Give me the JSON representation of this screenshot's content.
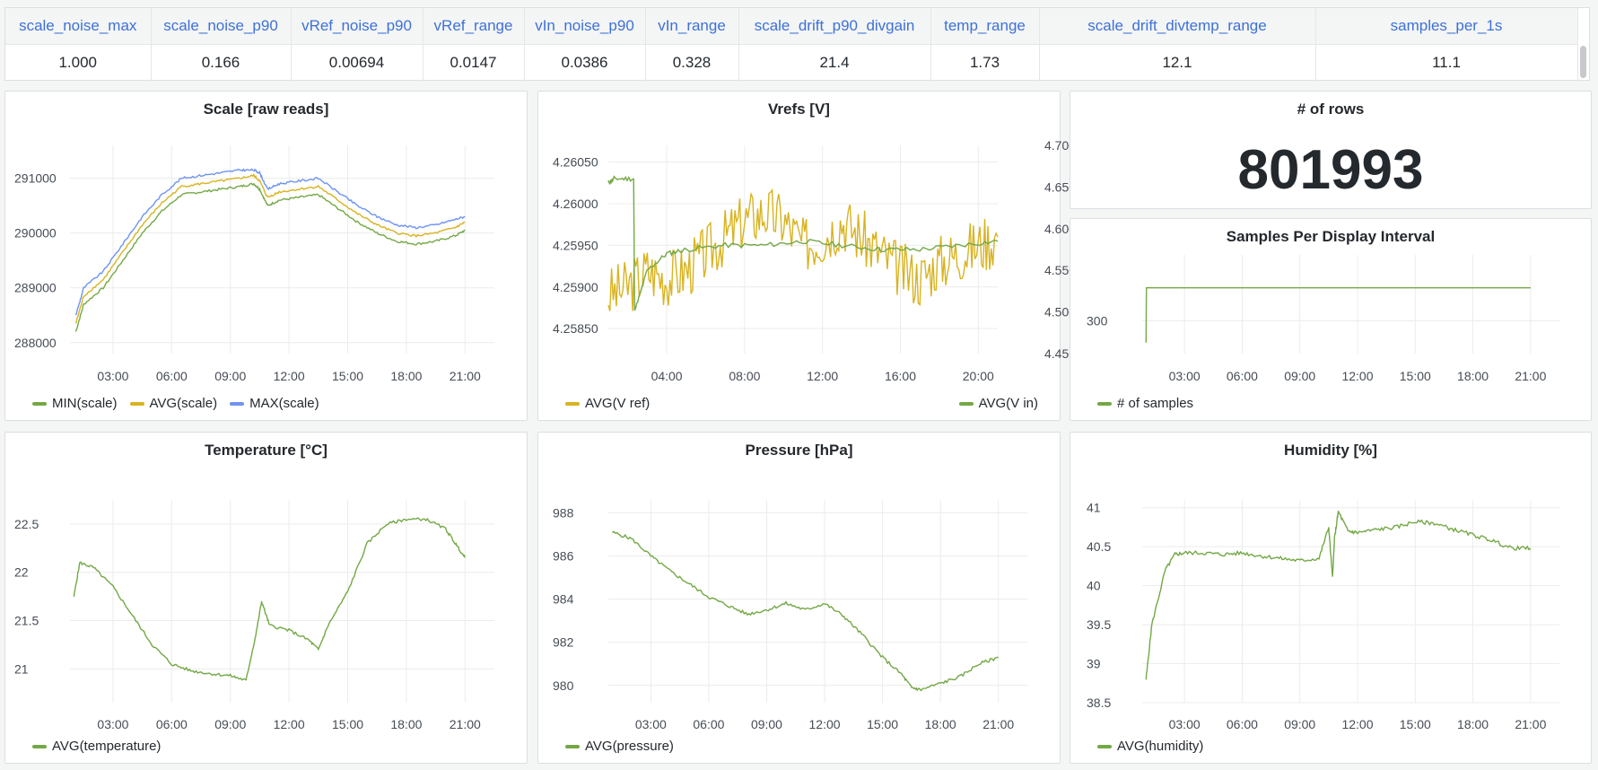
{
  "stats_table": {
    "columns": [
      "scale_noise_max",
      "scale_noise_p90",
      "vRef_noise_p90",
      "vRef_range",
      "vIn_noise_p90",
      "vIn_range",
      "scale_drift_p90_divgain",
      "temp_range",
      "scale_drift_divtemp_range",
      "samples_per_1s"
    ],
    "values": [
      "1.000",
      "0.166",
      "0.00694",
      "0.0147",
      "0.0386",
      "0.328",
      "21.4",
      "1.73",
      "12.1",
      "11.1"
    ]
  },
  "panels": {
    "scale": {
      "title": "Scale [raw reads]",
      "legend": [
        "MIN(scale)",
        "AVG(scale)",
        "MAX(scale)"
      ]
    },
    "vrefs": {
      "title": "Vrefs [V]",
      "legend_left": "AVG(V ref)",
      "legend_right": "AVG(V in)"
    },
    "rows": {
      "title": "# of rows",
      "value": "801993"
    },
    "samples": {
      "title": "Samples Per Display Interval",
      "legend": [
        "# of samples"
      ]
    },
    "temperature": {
      "title": "Temperature [°C]",
      "legend": [
        "AVG(temperature)"
      ]
    },
    "pressure": {
      "title": "Pressure [hPa]",
      "legend": [
        "AVG(pressure)"
      ]
    },
    "humidity": {
      "title": "Humidity [%]",
      "legend": [
        "AVG(humidity)"
      ]
    }
  },
  "colors": {
    "green": "#73a845",
    "yellow": "#d8b320",
    "blue": "#6e94ef",
    "grid": "#ececec"
  },
  "chart_data": [
    {
      "id": "scale",
      "type": "line",
      "title": "Scale [raw reads]",
      "x_ticks": [
        "03:00",
        "06:00",
        "09:00",
        "12:00",
        "15:00",
        "18:00",
        "21:00"
      ],
      "x": [
        1.1,
        1.5,
        2.5,
        3.5,
        4.5,
        5.5,
        6.5,
        7.5,
        8.5,
        9.5,
        10.2,
        10.5,
        10.9,
        11.5,
        12.5,
        13.5,
        14.5,
        15.5,
        16.5,
        17.5,
        18.5,
        19.5,
        20.5,
        21.0
      ],
      "xlim": [
        0.8,
        22.5
      ],
      "ylim": [
        287800,
        291600
      ],
      "y_ticks": [
        288000,
        289000,
        290000,
        291000
      ],
      "series": [
        {
          "name": "MIN(scale)",
          "color": "#73a845",
          "values": [
            288200,
            288700,
            289000,
            289500,
            290000,
            290400,
            290700,
            290750,
            290800,
            290850,
            290900,
            290800,
            290500,
            290600,
            290650,
            290700,
            290450,
            290200,
            290000,
            289850,
            289800,
            289850,
            289950,
            290050
          ]
        },
        {
          "name": "AVG(scale)",
          "color": "#d8b320",
          "values": [
            288350,
            288850,
            289150,
            289650,
            290150,
            290550,
            290850,
            290900,
            290950,
            291000,
            291050,
            290950,
            290650,
            290750,
            290800,
            290850,
            290600,
            290350,
            290150,
            290000,
            289950,
            290000,
            290100,
            290200
          ]
        },
        {
          "name": "MAX(scale)",
          "color": "#6e94ef",
          "values": [
            288500,
            289000,
            289300,
            289800,
            290300,
            290700,
            291000,
            291050,
            291100,
            291150,
            291150,
            291100,
            290800,
            290900,
            290950,
            291000,
            290750,
            290500,
            290300,
            290150,
            290100,
            290150,
            290250,
            290300
          ]
        }
      ]
    },
    {
      "id": "vrefs",
      "type": "line",
      "title": "Vrefs [V]",
      "x_ticks": [
        "04:00",
        "08:00",
        "12:00",
        "16:00",
        "20:00"
      ],
      "xlim": [
        1.0,
        21.0
      ],
      "y_left_ticks": [
        "4.25850",
        "4.25900",
        "4.25950",
        "4.26000",
        "4.26050"
      ],
      "y_left_lim": [
        4.2582,
        4.2607
      ],
      "y_right_ticks": [
        "4.45000",
        "4.50000",
        "4.55000",
        "4.60000",
        "4.65000",
        "4.70000"
      ],
      "y_right_lim": [
        4.45,
        4.7
      ],
      "series": [
        {
          "name": "AVG(V ref)",
          "color": "#d8b320",
          "axis": "left",
          "x": [
            1.0,
            2.0,
            3.0,
            4.0,
            5.0,
            6.0,
            7.0,
            8.0,
            9.0,
            10.0,
            11.0,
            12.0,
            13.0,
            14.0,
            15.0,
            16.0,
            17.0,
            18.0,
            19.0,
            20.0,
            21.0
          ],
          "values": [
            4.2589,
            4.259,
            4.2592,
            4.2591,
            4.2592,
            4.2594,
            4.2596,
            4.2598,
            4.2599,
            4.2598,
            4.2595,
            4.2596,
            4.2598,
            4.2596,
            4.2594,
            4.2592,
            4.2591,
            4.2593,
            4.2594,
            4.2595,
            4.2596
          ]
        },
        {
          "name": "AVG(V in)",
          "color": "#73a845",
          "axis": "right",
          "x": [
            1.0,
            1.3,
            2.3,
            2.35,
            3.0,
            4.0,
            5.0,
            7.0,
            9.0,
            11.0,
            13.0,
            15.0,
            17.0,
            19.0,
            21.0
          ],
          "values": [
            4.655,
            4.66,
            4.66,
            4.5,
            4.55,
            4.57,
            4.575,
            4.58,
            4.58,
            4.585,
            4.58,
            4.575,
            4.575,
            4.58,
            4.585
          ]
        }
      ]
    },
    {
      "id": "samples",
      "type": "line",
      "title": "Samples Per Display Interval",
      "x_ticks": [
        "03:00",
        "06:00",
        "09:00",
        "12:00",
        "15:00",
        "18:00",
        "21:00"
      ],
      "xlim": [
        0.8,
        22.5
      ],
      "y_ticks": [
        300
      ],
      "ylim": [
        270,
        360
      ],
      "series": [
        {
          "name": "# of samples",
          "color": "#73a845",
          "x": [
            1.0,
            1.02,
            1.05,
            21.0
          ],
          "values": [
            280,
            330,
            330,
            330
          ]
        }
      ]
    },
    {
      "id": "temperature",
      "type": "line",
      "title": "Temperature [°C]",
      "x_ticks": [
        "03:00",
        "06:00",
        "09:00",
        "12:00",
        "15:00",
        "18:00",
        "21:00"
      ],
      "xlim": [
        0.8,
        22.5
      ],
      "y_ticks": [
        21,
        21.5,
        22,
        22.5
      ],
      "ylim": [
        20.65,
        22.75
      ],
      "series": [
        {
          "name": "AVG(temperature)",
          "color": "#73a845",
          "x": [
            1.0,
            1.3,
            2.0,
            3.0,
            4.0,
            5.0,
            6.0,
            7.0,
            8.0,
            9.0,
            9.8,
            10.3,
            10.6,
            11.0,
            12.0,
            13.0,
            13.5,
            14.0,
            15.0,
            16.0,
            17.0,
            18.0,
            19.0,
            20.0,
            20.5,
            21.0
          ],
          "values": [
            21.75,
            22.1,
            22.05,
            21.85,
            21.55,
            21.25,
            21.05,
            20.98,
            20.95,
            20.93,
            20.88,
            21.35,
            21.7,
            21.45,
            21.4,
            21.3,
            21.2,
            21.45,
            21.8,
            22.3,
            22.5,
            22.55,
            22.55,
            22.45,
            22.3,
            22.15
          ]
        }
      ]
    },
    {
      "id": "pressure",
      "type": "line",
      "title": "Pressure [hPa]",
      "x_ticks": [
        "03:00",
        "06:00",
        "09:00",
        "12:00",
        "15:00",
        "18:00",
        "21:00"
      ],
      "xlim": [
        0.8,
        22.5
      ],
      "y_ticks": [
        980,
        982,
        984,
        986,
        988
      ],
      "ylim": [
        979.2,
        988.6
      ],
      "series": [
        {
          "name": "AVG(pressure)",
          "color": "#73a845",
          "x": [
            1.0,
            2.0,
            3.0,
            4.0,
            5.0,
            6.0,
            7.0,
            8.0,
            9.0,
            10.0,
            11.0,
            12.0,
            13.0,
            14.0,
            15.0,
            16.0,
            16.5,
            17.0,
            18.0,
            19.0,
            20.0,
            21.0
          ],
          "values": [
            987.1,
            986.8,
            986.0,
            985.3,
            984.7,
            984.1,
            983.7,
            983.3,
            983.5,
            983.8,
            983.5,
            983.8,
            983.2,
            982.3,
            981.3,
            980.5,
            979.9,
            979.8,
            980.1,
            980.4,
            981.0,
            981.3
          ]
        }
      ]
    },
    {
      "id": "humidity",
      "type": "line",
      "title": "Humidity [%]",
      "x_ticks": [
        "03:00",
        "06:00",
        "09:00",
        "12:00",
        "15:00",
        "18:00",
        "21:00"
      ],
      "xlim": [
        0.8,
        22.5
      ],
      "y_ticks": [
        "38.5",
        "39",
        "39.5",
        "40",
        "40.5",
        "41"
      ],
      "ylim": [
        38.5,
        41.1
      ],
      "series": [
        {
          "name": "AVG(humidity)",
          "color": "#73a845",
          "x": [
            1.0,
            1.3,
            2.0,
            2.5,
            3.0,
            4.0,
            5.0,
            6.0,
            7.0,
            8.0,
            9.0,
            10.0,
            10.5,
            10.7,
            10.8,
            11.0,
            11.5,
            12.0,
            13.0,
            14.0,
            15.0,
            16.0,
            17.0,
            18.0,
            19.0,
            20.0,
            21.0
          ],
          "values": [
            38.8,
            39.5,
            40.2,
            40.4,
            40.42,
            40.42,
            40.4,
            40.42,
            40.38,
            40.35,
            40.32,
            40.35,
            40.75,
            40.1,
            40.6,
            40.95,
            40.7,
            40.68,
            40.72,
            40.75,
            40.82,
            40.8,
            40.72,
            40.65,
            40.58,
            40.48,
            40.48
          ]
        }
      ]
    }
  ]
}
